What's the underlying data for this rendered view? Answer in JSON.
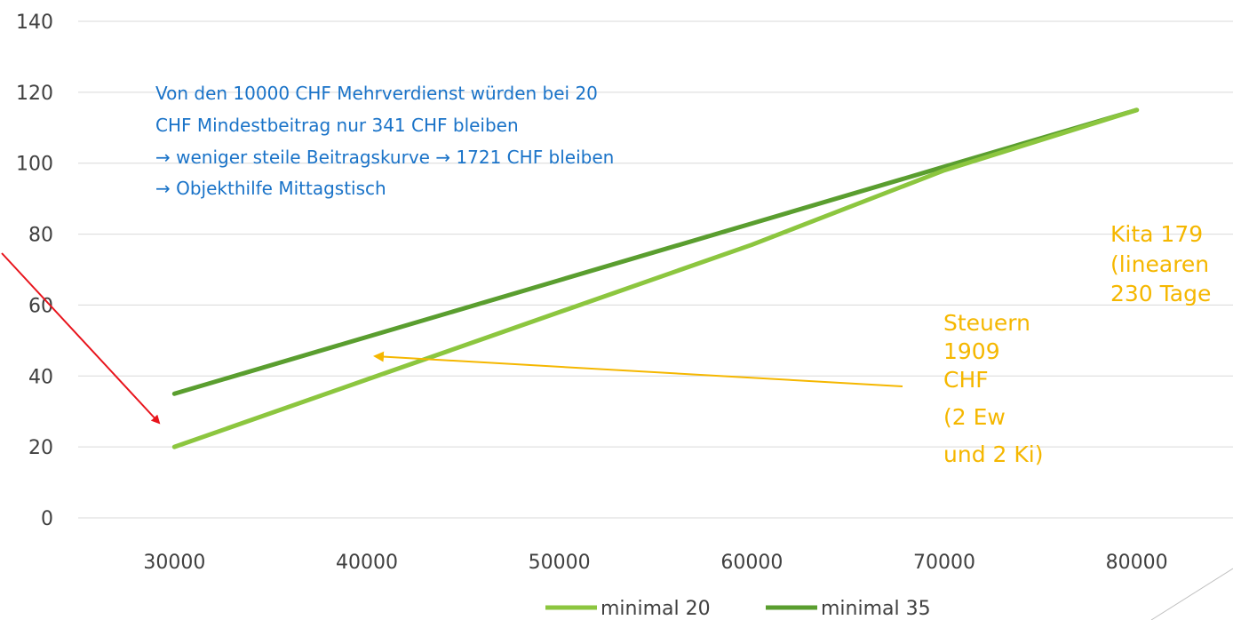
{
  "chart_data": {
    "type": "line",
    "x": [
      30000,
      40000,
      50000,
      60000,
      70000,
      80000
    ],
    "xlim": [
      25000,
      85000
    ],
    "ylim": [
      0,
      140
    ],
    "yticks": [
      0,
      20,
      40,
      60,
      80,
      100,
      120,
      140
    ],
    "grid": true,
    "legend": "bottom",
    "series": [
      {
        "name": "minimal 20",
        "color": "#8cc63f",
        "values": [
          20,
          39,
          58,
          77,
          98,
          115
        ]
      },
      {
        "name": "minimal 35",
        "color": "#5a9e2f",
        "values": [
          35,
          51,
          67,
          83,
          99,
          115
        ]
      }
    ],
    "annotations": {
      "blue_note": [
        "Von den 10000 CHF Mehrverdienst würden bei 20",
        "CHF Mindestbeitrag nur 341 CHF bleiben",
        "→ weniger steile Beitragskurve → 1721 CHF bleiben",
        "→ Objekthilfe Mittagstisch"
      ],
      "steuern_note": [
        "Steuern",
        "1909",
        "CHF",
        "(2 Ew",
        "und 2 Ki)"
      ],
      "kita_note": [
        "Kita 179",
        "(linearen",
        "230 Tage"
      ]
    },
    "colors": {
      "arrow_red": "#e8141c",
      "arrow_orange": "#f5b700",
      "gridline": "#d9d9d9"
    }
  }
}
